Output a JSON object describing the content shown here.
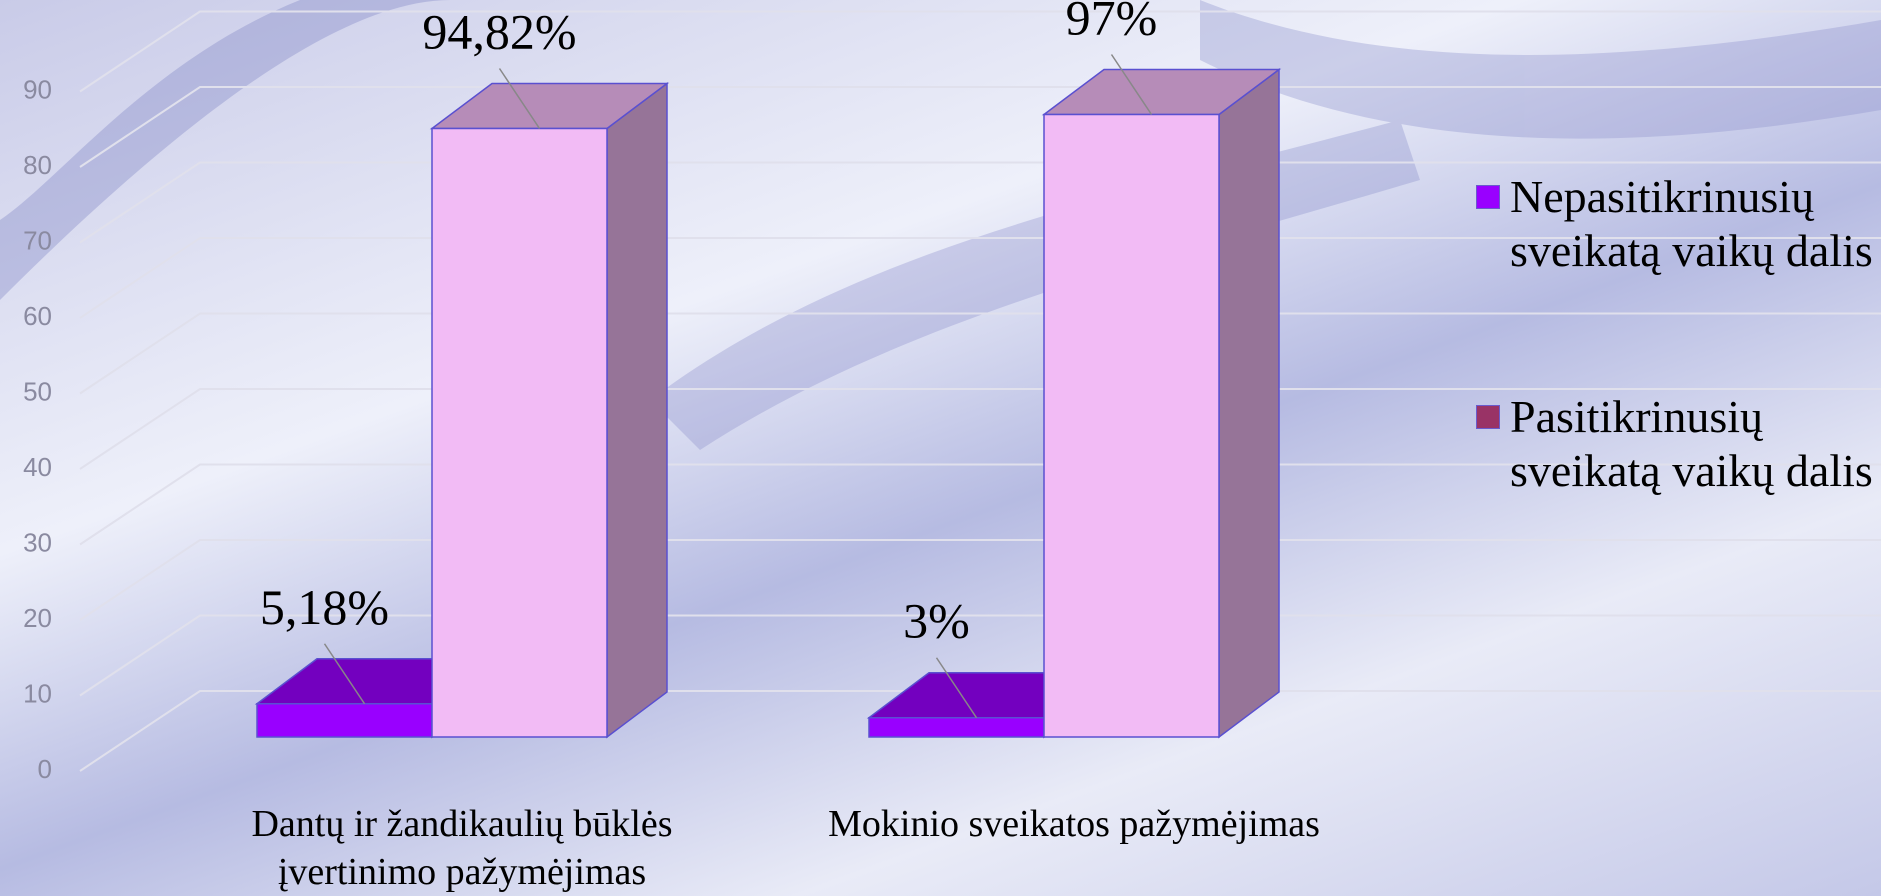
{
  "chart_data": {
    "type": "bar3d",
    "categories": [
      "Dantų ir žandikaulių būklės įvertinimo pažymėjimas",
      "Mokinio sveikatos pažymėjimas"
    ],
    "series": [
      {
        "name": "Nepasitikrinusių sveikatą vaikų dalis",
        "color": "#9900ff",
        "face_color": "#9900ff",
        "values": [
          5.18,
          3
        ],
        "value_labels": [
          "5,18%",
          "3%"
        ]
      },
      {
        "name": "Pasitikrinusių sveikatą vaikų dalis",
        "color": "#993366",
        "face_color": "#f2bbf5",
        "values": [
          94.82,
          97
        ],
        "value_labels": [
          "94,82%",
          "97%"
        ]
      }
    ],
    "ylim": [
      0,
      100
    ],
    "yticks": [
      0,
      10,
      20,
      30,
      40,
      50,
      60,
      70,
      80,
      90
    ],
    "grid": true,
    "legend": "right"
  }
}
